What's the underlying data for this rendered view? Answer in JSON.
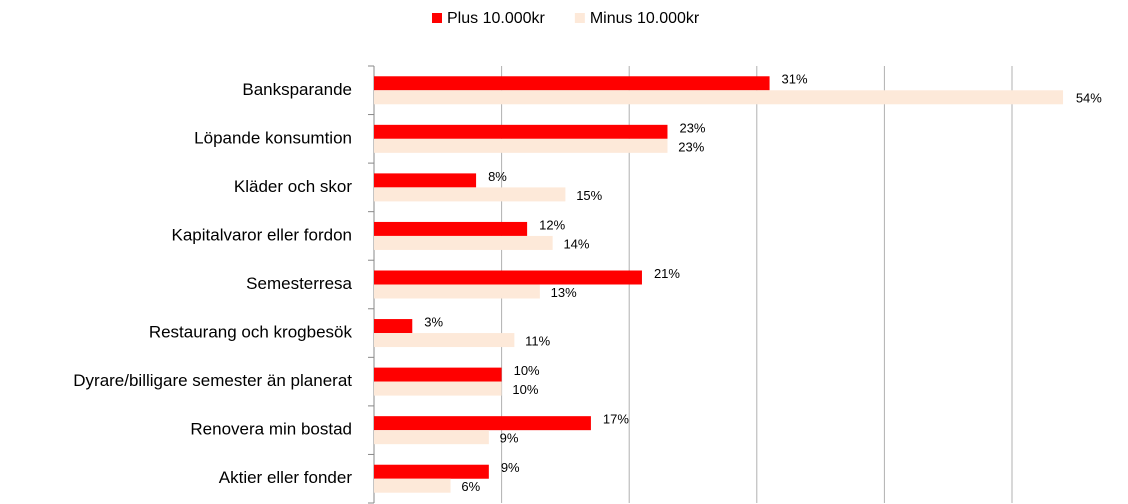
{
  "chart_data": {
    "type": "bar",
    "orientation": "horizontal",
    "categories": [
      "Banksparande",
      "Löpande konsumtion",
      "Kläder och skor",
      "Kapitalvaror eller fordon",
      "Semesterresa",
      "Restaurang och krogbesök",
      "Dyrare/billigare semester än planerat",
      "Renovera min bostad",
      "Aktier eller fonder"
    ],
    "series": [
      {
        "name": "Plus 10.000kr",
        "color": "#ff0000",
        "values": [
          31,
          23,
          8,
          12,
          21,
          3,
          10,
          17,
          9
        ],
        "value_labels": [
          "31%",
          "23%",
          "8%",
          "12%",
          "21%",
          "3%",
          "10%",
          "17%",
          "9%"
        ]
      },
      {
        "name": "Minus 10.000kr",
        "color": "#fde9d9",
        "values": [
          54,
          23,
          15,
          14,
          13,
          11,
          10,
          9,
          6
        ],
        "value_labels": [
          "54%",
          "23%",
          "15%",
          "14%",
          "13%",
          "11%",
          "10%",
          "9%",
          "6%"
        ]
      }
    ],
    "xlim": [
      0,
      55
    ],
    "xticks": [
      0,
      10,
      20,
      30,
      40,
      50
    ],
    "grid": true,
    "legend": "top"
  }
}
